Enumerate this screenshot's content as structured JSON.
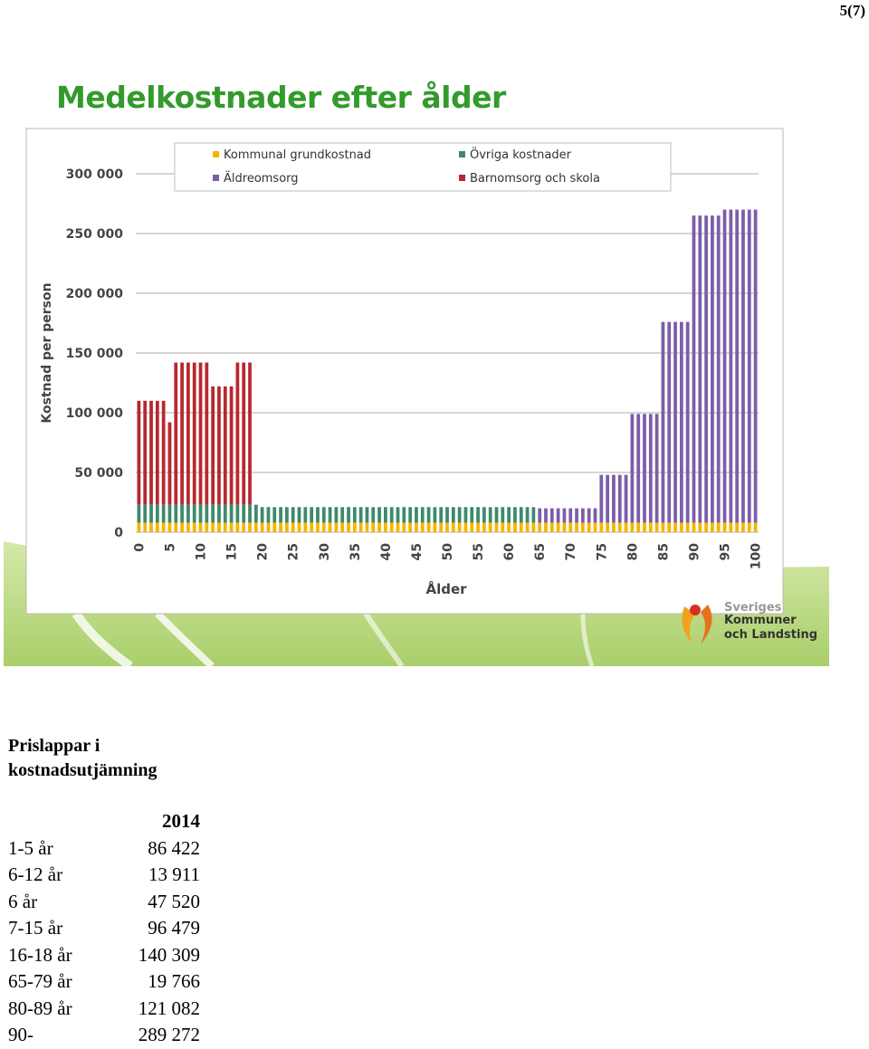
{
  "page_number": "5(7)",
  "slide": {
    "logo": {
      "top_text": "Sveriges",
      "line1": "Kommuner",
      "line2": "och Landsting"
    }
  },
  "chart_data": {
    "type": "bar",
    "stacked": true,
    "title": "Medelkostnader efter ålder",
    "xlabel": "Ålder",
    "ylabel": "Kostnad per person",
    "ylim": [
      0,
      300000
    ],
    "ytick_labels": [
      "0",
      "50 000",
      "100 000",
      "150 000",
      "200 000",
      "250 000",
      "300 000"
    ],
    "yticks": [
      0,
      50000,
      100000,
      150000,
      200000,
      250000,
      300000
    ],
    "x": [
      0,
      1,
      2,
      3,
      4,
      5,
      6,
      7,
      8,
      9,
      10,
      11,
      12,
      13,
      14,
      15,
      16,
      17,
      18,
      19,
      20,
      21,
      22,
      23,
      24,
      25,
      26,
      27,
      28,
      29,
      30,
      31,
      32,
      33,
      34,
      35,
      36,
      37,
      38,
      39,
      40,
      41,
      42,
      43,
      44,
      45,
      46,
      47,
      48,
      49,
      50,
      51,
      52,
      53,
      54,
      55,
      56,
      57,
      58,
      59,
      60,
      61,
      62,
      63,
      64,
      65,
      66,
      67,
      68,
      69,
      70,
      71,
      72,
      73,
      74,
      75,
      76,
      77,
      78,
      79,
      80,
      81,
      82,
      83,
      84,
      85,
      86,
      87,
      88,
      89,
      90,
      91,
      92,
      93,
      94,
      95,
      96,
      97,
      98,
      99,
      100
    ],
    "xtick_labels": [
      "0",
      "5",
      "10",
      "15",
      "20",
      "25",
      "30",
      "35",
      "40",
      "45",
      "50",
      "55",
      "60",
      "65",
      "70",
      "75",
      "80",
      "85",
      "90",
      "95",
      "100"
    ],
    "grid": true,
    "legend_position": "top",
    "series": [
      {
        "name": "Kommunal grundkostnad",
        "color": "#f6b400",
        "values": [
          8000,
          8000,
          8000,
          8000,
          8000,
          8000,
          8000,
          8000,
          8000,
          8000,
          8000,
          8000,
          8000,
          8000,
          8000,
          8000,
          8000,
          8000,
          8000,
          8000,
          8000,
          8000,
          8000,
          8000,
          8000,
          8000,
          8000,
          8000,
          8000,
          8000,
          8000,
          8000,
          8000,
          8000,
          8000,
          8000,
          8000,
          8000,
          8000,
          8000,
          8000,
          8000,
          8000,
          8000,
          8000,
          8000,
          8000,
          8000,
          8000,
          8000,
          8000,
          8000,
          8000,
          8000,
          8000,
          8000,
          8000,
          8000,
          8000,
          8000,
          8000,
          8000,
          8000,
          8000,
          8000,
          8000,
          8000,
          8000,
          8000,
          8000,
          8000,
          8000,
          8000,
          8000,
          8000,
          8000,
          8000,
          8000,
          8000,
          8000,
          8000,
          8000,
          8000,
          8000,
          8000,
          8000,
          8000,
          8000,
          8000,
          8000,
          8000,
          8000,
          8000,
          8000,
          8000,
          8000,
          8000,
          8000,
          8000,
          8000,
          8000
        ]
      },
      {
        "name": "Övriga kostnader",
        "color": "#3d8a6a",
        "values": [
          15000,
          15000,
          15000,
          15000,
          15000,
          15000,
          15000,
          15000,
          15000,
          15000,
          15000,
          15000,
          15000,
          15000,
          15000,
          15000,
          15000,
          15000,
          15000,
          15000,
          13000,
          13000,
          13000,
          13000,
          13000,
          13000,
          13000,
          13000,
          13000,
          13000,
          13000,
          13000,
          13000,
          13000,
          13000,
          13000,
          13000,
          13000,
          13000,
          13000,
          13000,
          13000,
          13000,
          13000,
          13000,
          13000,
          13000,
          13000,
          13000,
          13000,
          13000,
          13000,
          13000,
          13000,
          13000,
          13000,
          13000,
          13000,
          13000,
          13000,
          13000,
          13000,
          13000,
          13000,
          13000,
          0,
          0,
          0,
          0,
          0,
          0,
          0,
          0,
          0,
          0,
          0,
          0,
          0,
          0,
          0,
          0,
          0,
          0,
          0,
          0,
          0,
          0,
          0,
          0,
          0,
          0,
          0,
          0,
          0,
          0,
          0,
          0,
          0,
          0,
          0,
          0
        ]
      },
      {
        "name": "Äldreomsorg",
        "color": "#7b5ea8",
        "values": [
          0,
          0,
          0,
          0,
          0,
          0,
          0,
          0,
          0,
          0,
          0,
          0,
          0,
          0,
          0,
          0,
          0,
          0,
          0,
          0,
          0,
          0,
          0,
          0,
          0,
          0,
          0,
          0,
          0,
          0,
          0,
          0,
          0,
          0,
          0,
          0,
          0,
          0,
          0,
          0,
          0,
          0,
          0,
          0,
          0,
          0,
          0,
          0,
          0,
          0,
          0,
          0,
          0,
          0,
          0,
          0,
          0,
          0,
          0,
          0,
          0,
          0,
          0,
          0,
          0,
          12000,
          12000,
          12000,
          12000,
          12000,
          12000,
          12000,
          12000,
          12000,
          12000,
          40000,
          40000,
          40000,
          40000,
          40000,
          91000,
          91000,
          91000,
          91000,
          91000,
          168000,
          168000,
          168000,
          168000,
          168000,
          257000,
          257000,
          257000,
          257000,
          257000,
          262000,
          262000,
          262000,
          262000,
          262000,
          262000
        ]
      },
      {
        "name": "Barnomsorg och skola",
        "color": "#b8272e",
        "values": [
          87000,
          87000,
          87000,
          87000,
          87000,
          69000,
          119000,
          119000,
          119000,
          119000,
          119000,
          119000,
          99000,
          99000,
          99000,
          99000,
          119000,
          119000,
          119000,
          0,
          0,
          0,
          0,
          0,
          0,
          0,
          0,
          0,
          0,
          0,
          0,
          0,
          0,
          0,
          0,
          0,
          0,
          0,
          0,
          0,
          0,
          0,
          0,
          0,
          0,
          0,
          0,
          0,
          0,
          0,
          0,
          0,
          0,
          0,
          0,
          0,
          0,
          0,
          0,
          0,
          0,
          0,
          0,
          0,
          0,
          0,
          0,
          0,
          0,
          0,
          0,
          0,
          0,
          0,
          0,
          0,
          0,
          0,
          0,
          0,
          0,
          0,
          0,
          0,
          0,
          0,
          0,
          0,
          0,
          0,
          0,
          0,
          0,
          0,
          0,
          0,
          0,
          0,
          0,
          0,
          0
        ]
      }
    ]
  },
  "price_list": {
    "heading_line1": "Prislappar i",
    "heading_line2": "kostnadsutjämning",
    "year_header": "2014",
    "rows": [
      {
        "label": "1-5 år",
        "value": "86 422"
      },
      {
        "label": "6-12 år",
        "value": "13 911"
      },
      {
        "label": "6 år",
        "value": "47 520"
      },
      {
        "label": "7-15 år",
        "value": "96 479"
      },
      {
        "label": "16-18 år",
        "value": "140 309"
      },
      {
        "label": "65-79 år",
        "value": "19 766"
      },
      {
        "label": "80-89 år",
        "value": "121 082"
      },
      {
        "label": "90-",
        "value": "289 272"
      }
    ]
  }
}
